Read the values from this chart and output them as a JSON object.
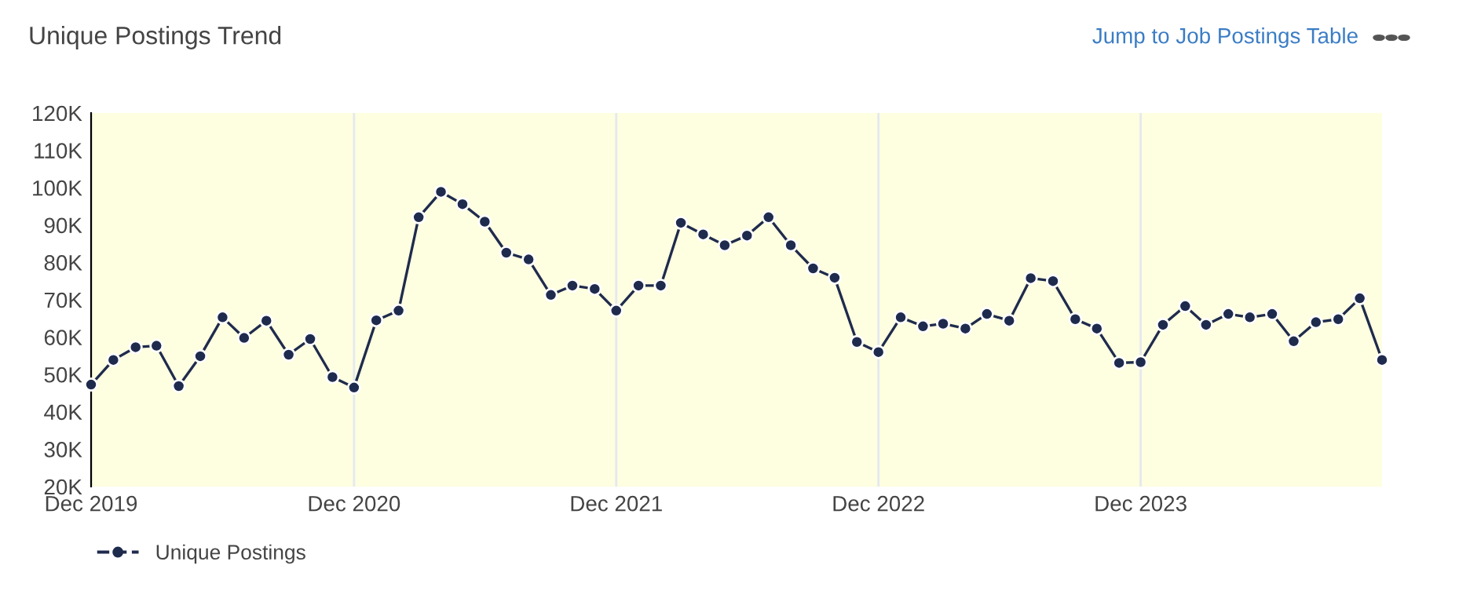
{
  "chart_data": {
    "type": "line",
    "title": "Unique Postings Trend",
    "annotations": [
      "Jump to Job Postings Table"
    ],
    "x": [
      "2019-12",
      "2020-01",
      "2020-02",
      "2020-03",
      "2020-04",
      "2020-05",
      "2020-06",
      "2020-07",
      "2020-08",
      "2020-09",
      "2020-10",
      "2020-11",
      "2020-12",
      "2021-01",
      "2021-02",
      "2021-03",
      "2021-04",
      "2021-05",
      "2021-06",
      "2021-07",
      "2021-08",
      "2021-09",
      "2021-10",
      "2021-11",
      "2021-12",
      "2022-01",
      "2022-02",
      "2022-03",
      "2022-04",
      "2022-05",
      "2022-06",
      "2022-07",
      "2022-08",
      "2022-09",
      "2022-10",
      "2022-11",
      "2022-12",
      "2023-01",
      "2023-02",
      "2023-03",
      "2023-04",
      "2023-05",
      "2023-06",
      "2023-07",
      "2023-08",
      "2023-09",
      "2023-10",
      "2023-11",
      "2023-12",
      "2024-01",
      "2024-02",
      "2024-03",
      "2024-04",
      "2024-05",
      "2024-06",
      "2024-07",
      "2024-08",
      "2024-09",
      "2024-10",
      "2024-11"
    ],
    "series": [
      {
        "name": "Unique Postings",
        "color": "#1f2b4d",
        "values": [
          47300,
          53900,
          57300,
          57700,
          46900,
          54900,
          65300,
          59800,
          64400,
          55300,
          59500,
          49300,
          46500,
          64500,
          67100,
          92100,
          98900,
          95600,
          90900,
          82600,
          80800,
          71300,
          73800,
          72900,
          67100,
          73800,
          73800,
          90600,
          87500,
          84600,
          87200,
          92100,
          84600,
          78400,
          75900,
          58700,
          56000,
          65300,
          62900,
          63600,
          62300,
          66200,
          64400,
          75800,
          75000,
          64800,
          62300,
          53100,
          53300,
          63300,
          68300,
          63300,
          66200,
          65300,
          66200,
          58900,
          64000,
          64800,
          70400,
          53900
        ]
      }
    ],
    "xlim": [
      "2019-12",
      "2024-11"
    ],
    "xticks": [
      {
        "value": "2019-12",
        "label": "Dec 2019"
      },
      {
        "value": "2020-12",
        "label": "Dec 2020"
      },
      {
        "value": "2021-12",
        "label": "Dec 2021"
      },
      {
        "value": "2022-12",
        "label": "Dec 2022"
      },
      {
        "value": "2023-12",
        "label": "Dec 2023"
      }
    ],
    "ylim": [
      20000,
      120000
    ],
    "yticks": [
      {
        "value": 20000,
        "label": "20K"
      },
      {
        "value": 30000,
        "label": "30K"
      },
      {
        "value": 40000,
        "label": "40K"
      },
      {
        "value": 50000,
        "label": "50K"
      },
      {
        "value": 60000,
        "label": "60K"
      },
      {
        "value": 70000,
        "label": "70K"
      },
      {
        "value": 80000,
        "label": "80K"
      },
      {
        "value": 90000,
        "label": "90K"
      },
      {
        "value": 100000,
        "label": "100K"
      },
      {
        "value": 110000,
        "label": "110K"
      },
      {
        "value": 120000,
        "label": "120K"
      }
    ],
    "grid": "x",
    "legend": "bottom left",
    "marker": "circle",
    "line_style": "solid"
  }
}
